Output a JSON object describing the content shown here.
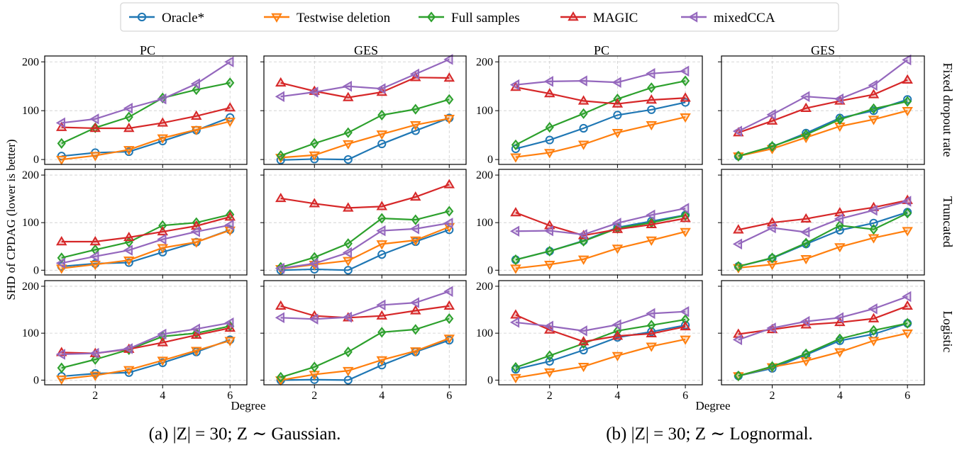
{
  "legend": {
    "series": [
      {
        "name": "Oracle*",
        "color": "#1f77b4",
        "marker": "circle"
      },
      {
        "name": "Testwise deletion",
        "color": "#ff7f0e",
        "marker": "triangle-down"
      },
      {
        "name": "Full samples",
        "color": "#2ca02c",
        "marker": "diamond"
      },
      {
        "name": "MAGIC",
        "color": "#d62728",
        "marker": "triangle-up"
      },
      {
        "name": "mixedCCA",
        "color": "#9467bd",
        "marker": "triangle-left"
      }
    ]
  },
  "ylabel": "SHD of CPDAG (lower is better)",
  "xlabel": "Degree",
  "column_titles": [
    "PC",
    "GES",
    "PC",
    "GES"
  ],
  "row_titles": [
    "Fixed dropout rate",
    "Truncated",
    "Logistic"
  ],
  "captions": [
    "(a) |Z| = 30; Z ∼ Gaussian.",
    "(b) |Z| = 30; Z ∼ Lognormal."
  ],
  "chart_data": {
    "type": "line",
    "x": [
      1,
      2,
      3,
      4,
      5,
      6
    ],
    "xticks": [
      2,
      4,
      6
    ],
    "yticks": [
      0,
      100,
      200
    ],
    "ylim": [
      -10,
      212
    ],
    "grid": true,
    "legend_placement": "top-center",
    "panels": [
      {
        "group": "a",
        "algorithm": "PC",
        "setting": "Fixed dropout rate",
        "series": [
          [
            7,
            14,
            16,
            38,
            60,
            86
          ],
          [
            0,
            8,
            20,
            44,
            61,
            78
          ],
          [
            33,
            65,
            87,
            126,
            143,
            157
          ],
          [
            66,
            64,
            64,
            75,
            89,
            106
          ],
          [
            75,
            83,
            105,
            124,
            155,
            200
          ]
        ]
      },
      {
        "group": "a",
        "algorithm": "GES",
        "setting": "Fixed dropout rate",
        "series": [
          [
            -1,
            1,
            0,
            32,
            59,
            85
          ],
          [
            4,
            9,
            32,
            52,
            71,
            84
          ],
          [
            8,
            33,
            55,
            91,
            103,
            123
          ],
          [
            157,
            140,
            127,
            138,
            168,
            167
          ],
          [
            129,
            138,
            150,
            145,
            175,
            205
          ]
        ]
      },
      {
        "group": "b",
        "algorithm": "PC",
        "setting": "Fixed dropout rate",
        "series": [
          [
            22,
            40,
            64,
            91,
            102,
            117
          ],
          [
            5,
            14,
            31,
            55,
            71,
            87
          ],
          [
            30,
            66,
            94,
            124,
            147,
            161
          ],
          [
            148,
            135,
            120,
            114,
            122,
            126
          ],
          [
            153,
            160,
            161,
            158,
            176,
            181
          ]
        ]
      },
      {
        "group": "b",
        "algorithm": "GES",
        "setting": "Fixed dropout rate",
        "series": [
          [
            7,
            26,
            54,
            85,
            100,
            123
          ],
          [
            7,
            22,
            45,
            68,
            82,
            100
          ],
          [
            7,
            27,
            51,
            82,
            104,
            119
          ],
          [
            55,
            79,
            105,
            120,
            133,
            163
          ],
          [
            58,
            92,
            129,
            124,
            152,
            204
          ]
        ]
      },
      {
        "group": "a",
        "algorithm": "PC",
        "setting": "Truncated",
        "series": [
          [
            8,
            14,
            16,
            38,
            59,
            85
          ],
          [
            4,
            12,
            21,
            47,
            59,
            84
          ],
          [
            26,
            43,
            59,
            94,
            100,
            117
          ],
          [
            60,
            60,
            69,
            81,
            93,
            112
          ],
          [
            15,
            29,
            42,
            65,
            81,
            95
          ]
        ]
      },
      {
        "group": "a",
        "algorithm": "GES",
        "setting": "Truncated",
        "series": [
          [
            0,
            2,
            0,
            33,
            60,
            85
          ],
          [
            3,
            12,
            20,
            55,
            63,
            91
          ],
          [
            6,
            27,
            56,
            109,
            106,
            124
          ],
          [
            151,
            140,
            131,
            134,
            154,
            180
          ],
          [
            4,
            14,
            37,
            83,
            87,
            99
          ]
        ]
      },
      {
        "group": "b",
        "algorithm": "PC",
        "setting": "Truncated",
        "series": [
          [
            22,
            40,
            62,
            90,
            103,
            116
          ],
          [
            4,
            12,
            23,
            46,
            63,
            81
          ],
          [
            22,
            40,
            61,
            88,
            100,
            115
          ],
          [
            121,
            94,
            73,
            86,
            96,
            109
          ],
          [
            82,
            83,
            75,
            99,
            116,
            130
          ]
        ]
      },
      {
        "group": "b",
        "algorithm": "GES",
        "setting": "Truncated",
        "series": [
          [
            8,
            25,
            55,
            84,
            99,
            122
          ],
          [
            5,
            12,
            24,
            49,
            68,
            83
          ],
          [
            8,
            26,
            57,
            94,
            86,
            120
          ],
          [
            85,
            100,
            108,
            121,
            132,
            147
          ],
          [
            55,
            89,
            80,
            108,
            126,
            145
          ]
        ]
      },
      {
        "group": "a",
        "algorithm": "PC",
        "setting": "Logistic",
        "series": [
          [
            8,
            14,
            16,
            37,
            60,
            86
          ],
          [
            2,
            10,
            22,
            42,
            63,
            84
          ],
          [
            26,
            44,
            65,
            93,
            100,
            115
          ],
          [
            59,
            57,
            66,
            80,
            96,
            111
          ],
          [
            55,
            57,
            67,
            98,
            109,
            122
          ]
        ]
      },
      {
        "group": "a",
        "algorithm": "GES",
        "setting": "Logistic",
        "series": [
          [
            0,
            1,
            0,
            32,
            60,
            85
          ],
          [
            0,
            12,
            20,
            43,
            62,
            89
          ],
          [
            6,
            28,
            60,
            102,
            108,
            131
          ],
          [
            158,
            137,
            133,
            137,
            148,
            158
          ],
          [
            133,
            130,
            134,
            160,
            165,
            189
          ]
        ]
      },
      {
        "group": "b",
        "algorithm": "PC",
        "setting": "Logistic",
        "series": [
          [
            23,
            40,
            64,
            91,
            103,
            117
          ],
          [
            5,
            17,
            29,
            52,
            72,
            87
          ],
          [
            27,
            52,
            78,
            105,
            117,
            129
          ],
          [
            139,
            107,
            82,
            94,
            99,
            114
          ],
          [
            123,
            115,
            105,
            118,
            142,
            146
          ]
        ]
      },
      {
        "group": "b",
        "algorithm": "GES",
        "setting": "Logistic",
        "series": [
          [
            9,
            25,
            54,
            84,
            98,
            121
          ],
          [
            9,
            28,
            41,
            60,
            84,
            100
          ],
          [
            9,
            29,
            56,
            88,
            106,
            121
          ],
          [
            98,
            108,
            118,
            123,
            131,
            158
          ],
          [
            86,
            111,
            125,
            133,
            152,
            178
          ]
        ]
      }
    ]
  }
}
